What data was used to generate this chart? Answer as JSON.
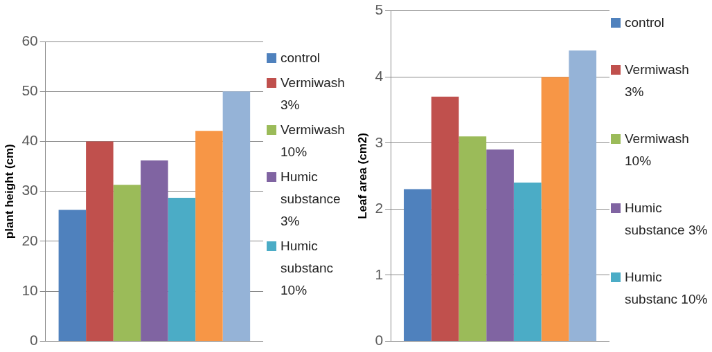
{
  "chart_data": [
    {
      "type": "bar",
      "ylabel": "plant height (cm)",
      "categories": [
        null
      ],
      "ylim": [
        0,
        60
      ],
      "yticks": [
        0,
        10,
        20,
        30,
        40,
        50,
        60
      ],
      "grid": "y",
      "legend": "right",
      "series": [
        {
          "name": "control",
          "color": "#4f81bd",
          "values": [
            26.3
          ]
        },
        {
          "name": "Vermiwash 3%",
          "color": "#c0504d",
          "values": [
            40
          ]
        },
        {
          "name": "Vermiwash 10%",
          "color": "#9bbb59",
          "values": [
            31.3
          ]
        },
        {
          "name": "Humic substance 3%",
          "color": "#8064a2",
          "values": [
            36.2
          ]
        },
        {
          "name": "Humic substanc 10%",
          "color": "#4bacc6",
          "values": [
            28.7
          ]
        },
        {
          "color": "#f79646",
          "values": [
            42.1
          ]
        },
        {
          "color": "#95b3d7",
          "values": [
            50
          ]
        }
      ]
    },
    {
      "type": "bar",
      "ylabel": "Leaf area (cm2)",
      "categories": [
        null
      ],
      "ylim": [
        0,
        5
      ],
      "yticks": [
        0,
        1,
        2,
        3,
        4,
        5
      ],
      "grid": "y",
      "legend": "right",
      "series": [
        {
          "name": "control",
          "color": "#4f81bd",
          "values": [
            2.3
          ]
        },
        {
          "name": "Vermiwash 3%",
          "color": "#c0504d",
          "values": [
            3.7
          ]
        },
        {
          "name": "Vermiwash 10%",
          "color": "#9bbb59",
          "values": [
            3.1
          ]
        },
        {
          "name": "Humic substance 3%",
          "color": "#8064a2",
          "values": [
            2.9
          ]
        },
        {
          "name": "Humic substanc 10%",
          "color": "#4bacc6",
          "values": [
            2.4
          ]
        },
        {
          "color": "#f79646",
          "values": [
            4.0
          ]
        },
        {
          "color": "#95b3d7",
          "values": [
            4.4
          ]
        }
      ]
    }
  ]
}
